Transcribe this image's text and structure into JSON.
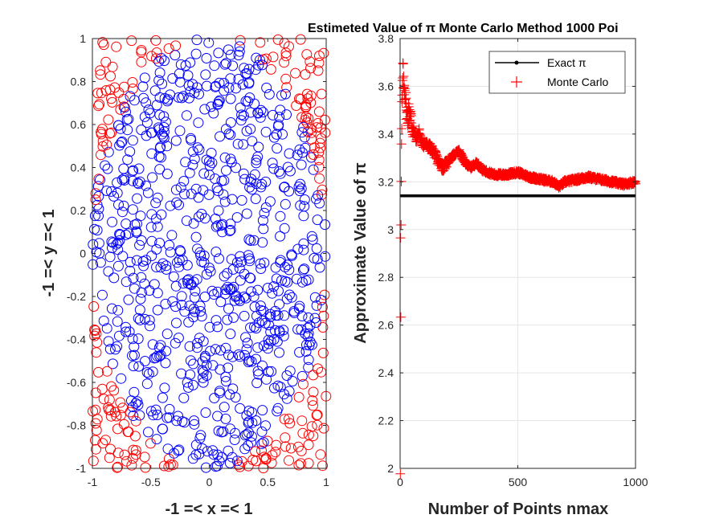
{
  "chart_data": [
    {
      "type": "scatter",
      "xlabel": "-1 =< x =< 1",
      "ylabel": "-1 =< y =< 1",
      "xlim": [
        -1,
        1
      ],
      "ylim": [
        -1,
        1
      ],
      "xticks": [
        "-1",
        "-0.5",
        "0",
        "0.5",
        "1"
      ],
      "yticks": [
        "-1",
        "-0.8",
        "-0.6",
        "-0.4",
        "-0.2",
        "0",
        "0.2",
        "0.4",
        "0.6",
        "0.8",
        "1"
      ],
      "grid": false,
      "marker": "circle",
      "n_points": 1000,
      "series_colors": {
        "inside_unit_circle": "#0000ff",
        "outside_unit_circle": "#ff0000"
      }
    },
    {
      "type": "line",
      "title": "Estimeted Value of π Monte Carlo Method 1000 Poi",
      "xlabel": "Number of Points nmax",
      "ylabel": "Approximate Value of π",
      "xlim": [
        0,
        1000
      ],
      "ylim": [
        2,
        3.8
      ],
      "xticks": [
        "0",
        "500",
        "1000"
      ],
      "yticks": [
        "2",
        "2.2",
        "2.4",
        "2.6",
        "2.8",
        "3",
        "3.2",
        "3.4",
        "3.6",
        "3.8"
      ],
      "grid": true,
      "legend_position": "top-right",
      "series": [
        {
          "name": "Exact π",
          "color": "#000000",
          "marker": "dot",
          "x": [
            0,
            1000
          ],
          "y": [
            3.1416,
            3.1416
          ]
        },
        {
          "name": "Monte Carlo",
          "color": "#ff0000",
          "marker": "plus",
          "x": [
            1,
            2,
            3,
            4,
            5,
            6,
            8,
            10,
            12,
            15,
            20,
            25,
            30,
            40,
            50,
            60,
            70,
            80,
            90,
            100,
            120,
            140,
            160,
            180,
            200,
            225,
            250,
            275,
            300,
            325,
            350,
            375,
            400,
            450,
            500,
            550,
            600,
            650,
            675,
            700,
            750,
            800,
            850,
            900,
            950,
            1000
          ],
          "y": [
            2.0,
            3.0,
            2.67,
            3.0,
            3.2,
            3.33,
            3.5,
            3.6,
            3.67,
            3.6,
            3.6,
            3.52,
            3.47,
            3.5,
            3.44,
            3.4,
            3.38,
            3.41,
            3.37,
            3.36,
            3.35,
            3.33,
            3.29,
            3.26,
            3.28,
            3.31,
            3.33,
            3.28,
            3.26,
            3.28,
            3.25,
            3.24,
            3.23,
            3.23,
            3.24,
            3.22,
            3.21,
            3.2,
            3.18,
            3.2,
            3.21,
            3.22,
            3.21,
            3.2,
            3.19,
            3.2
          ]
        }
      ]
    }
  ]
}
